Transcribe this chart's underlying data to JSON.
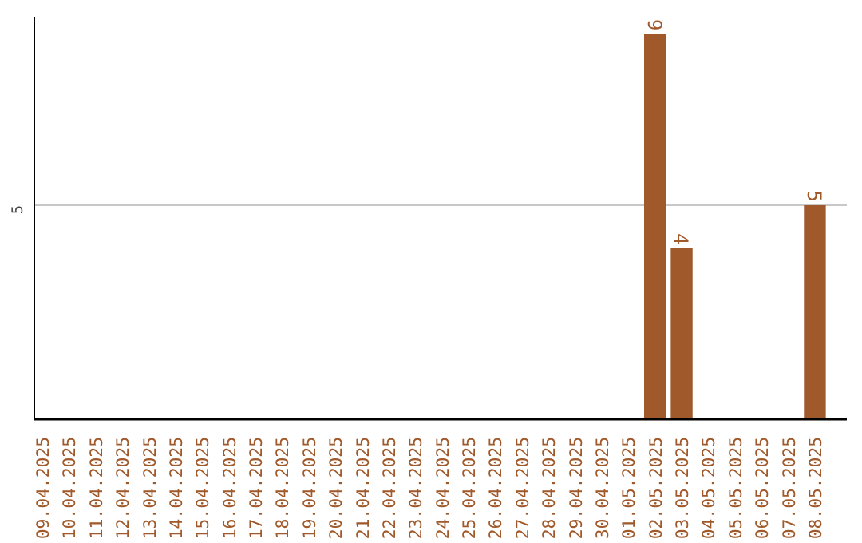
{
  "chart_data": {
    "type": "bar",
    "categories": [
      "09.04.2025",
      "10.04.2025",
      "11.04.2025",
      "12.04.2025",
      "13.04.2025",
      "14.04.2025",
      "15.04.2025",
      "16.04.2025",
      "17.04.2025",
      "18.04.2025",
      "19.04.2025",
      "20.04.2025",
      "21.04.2025",
      "22.04.2025",
      "23.04.2025",
      "24.04.2025",
      "25.04.2025",
      "26.04.2025",
      "27.04.2025",
      "28.04.2025",
      "29.04.2025",
      "30.04.2025",
      "01.05.2025",
      "02.05.2025",
      "03.05.2025",
      "04.05.2025",
      "05.05.2025",
      "06.05.2025",
      "07.05.2025",
      "08.05.2025"
    ],
    "values": [
      null,
      null,
      null,
      null,
      null,
      null,
      null,
      null,
      null,
      null,
      null,
      null,
      null,
      null,
      null,
      null,
      null,
      null,
      null,
      null,
      null,
      null,
      null,
      9,
      4,
      null,
      null,
      null,
      null,
      5
    ],
    "data_labels": true,
    "color": "#a0592a",
    "ylim": [
      0,
      9.4
    ],
    "yticks": [
      5
    ],
    "grid": "y"
  }
}
